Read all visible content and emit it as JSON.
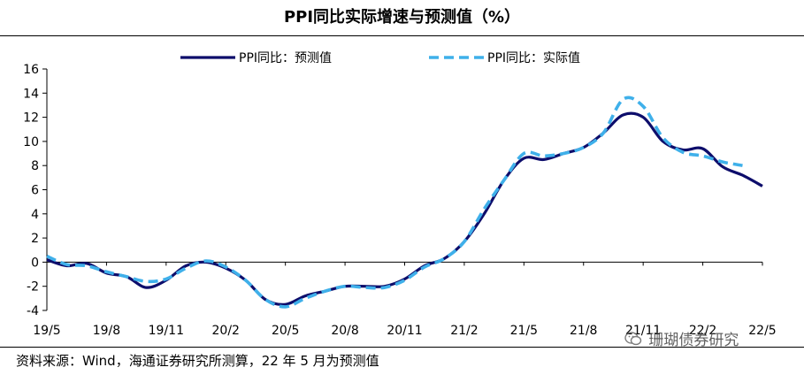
{
  "header": {
    "title": "PPI同比实际增速与预测值（%）"
  },
  "footer": {
    "source": "资料来源：Wind，海通证券研究所测算，22 年 5 月为预测值"
  },
  "watermark": {
    "text": "珊瑚债券研究"
  },
  "colors": {
    "forecast": "#0d0d6b",
    "actual": "#3fb0ea",
    "axis": "#000000"
  },
  "chart_data": {
    "type": "line",
    "title": "PPI同比实际增速与预测值（%）",
    "xlabel": "",
    "ylabel": "",
    "ylim": [
      -4,
      16
    ],
    "yticks": [
      -4,
      -2,
      0,
      2,
      4,
      6,
      8,
      10,
      12,
      14,
      16
    ],
    "legend_position": "top",
    "categories": [
      "19/5",
      "19/6",
      "19/7",
      "19/8",
      "19/9",
      "19/10",
      "19/11",
      "19/12",
      "20/1",
      "20/2",
      "20/3",
      "20/4",
      "20/5",
      "20/6",
      "20/7",
      "20/8",
      "20/9",
      "20/10",
      "20/11",
      "20/12",
      "21/1",
      "21/2",
      "21/3",
      "21/4",
      "21/5",
      "21/6",
      "21/7",
      "21/8",
      "21/9",
      "21/10",
      "21/11",
      "21/12",
      "22/1",
      "22/2",
      "22/3",
      "22/4",
      "22/5"
    ],
    "tick_labels": [
      "19/5",
      "19/8",
      "19/11",
      "20/2",
      "20/5",
      "20/8",
      "20/11",
      "21/2",
      "21/5",
      "21/8",
      "21/11",
      "22/2",
      "22/5"
    ],
    "series": [
      {
        "name": "PPI同比：预测值",
        "style": "solid",
        "values": [
          0.2,
          -0.3,
          -0.1,
          -0.9,
          -1.2,
          -2.1,
          -1.5,
          -0.3,
          0.0,
          -0.5,
          -1.5,
          -3.1,
          -3.5,
          -2.8,
          -2.4,
          -2.0,
          -2.0,
          -2.0,
          -1.4,
          -0.3,
          0.3,
          1.7,
          4.0,
          6.8,
          8.6,
          8.5,
          9.0,
          9.5,
          10.7,
          12.2,
          12.0,
          10.0,
          9.3,
          9.4,
          7.9,
          7.2,
          6.3
        ]
      },
      {
        "name": "PPI同比：实际值",
        "style": "dashed",
        "values": [
          0.5,
          -0.2,
          -0.3,
          -0.8,
          -1.2,
          -1.6,
          -1.4,
          -0.5,
          0.1,
          -0.4,
          -1.5,
          -3.1,
          -3.7,
          -3.0,
          -2.4,
          -2.0,
          -2.1,
          -2.1,
          -1.5,
          -0.4,
          0.3,
          1.7,
          4.4,
          6.8,
          9.0,
          8.8,
          9.0,
          9.5,
          10.7,
          13.5,
          12.9,
          10.3,
          9.1,
          8.8,
          8.3,
          8.0,
          null
        ]
      }
    ]
  }
}
